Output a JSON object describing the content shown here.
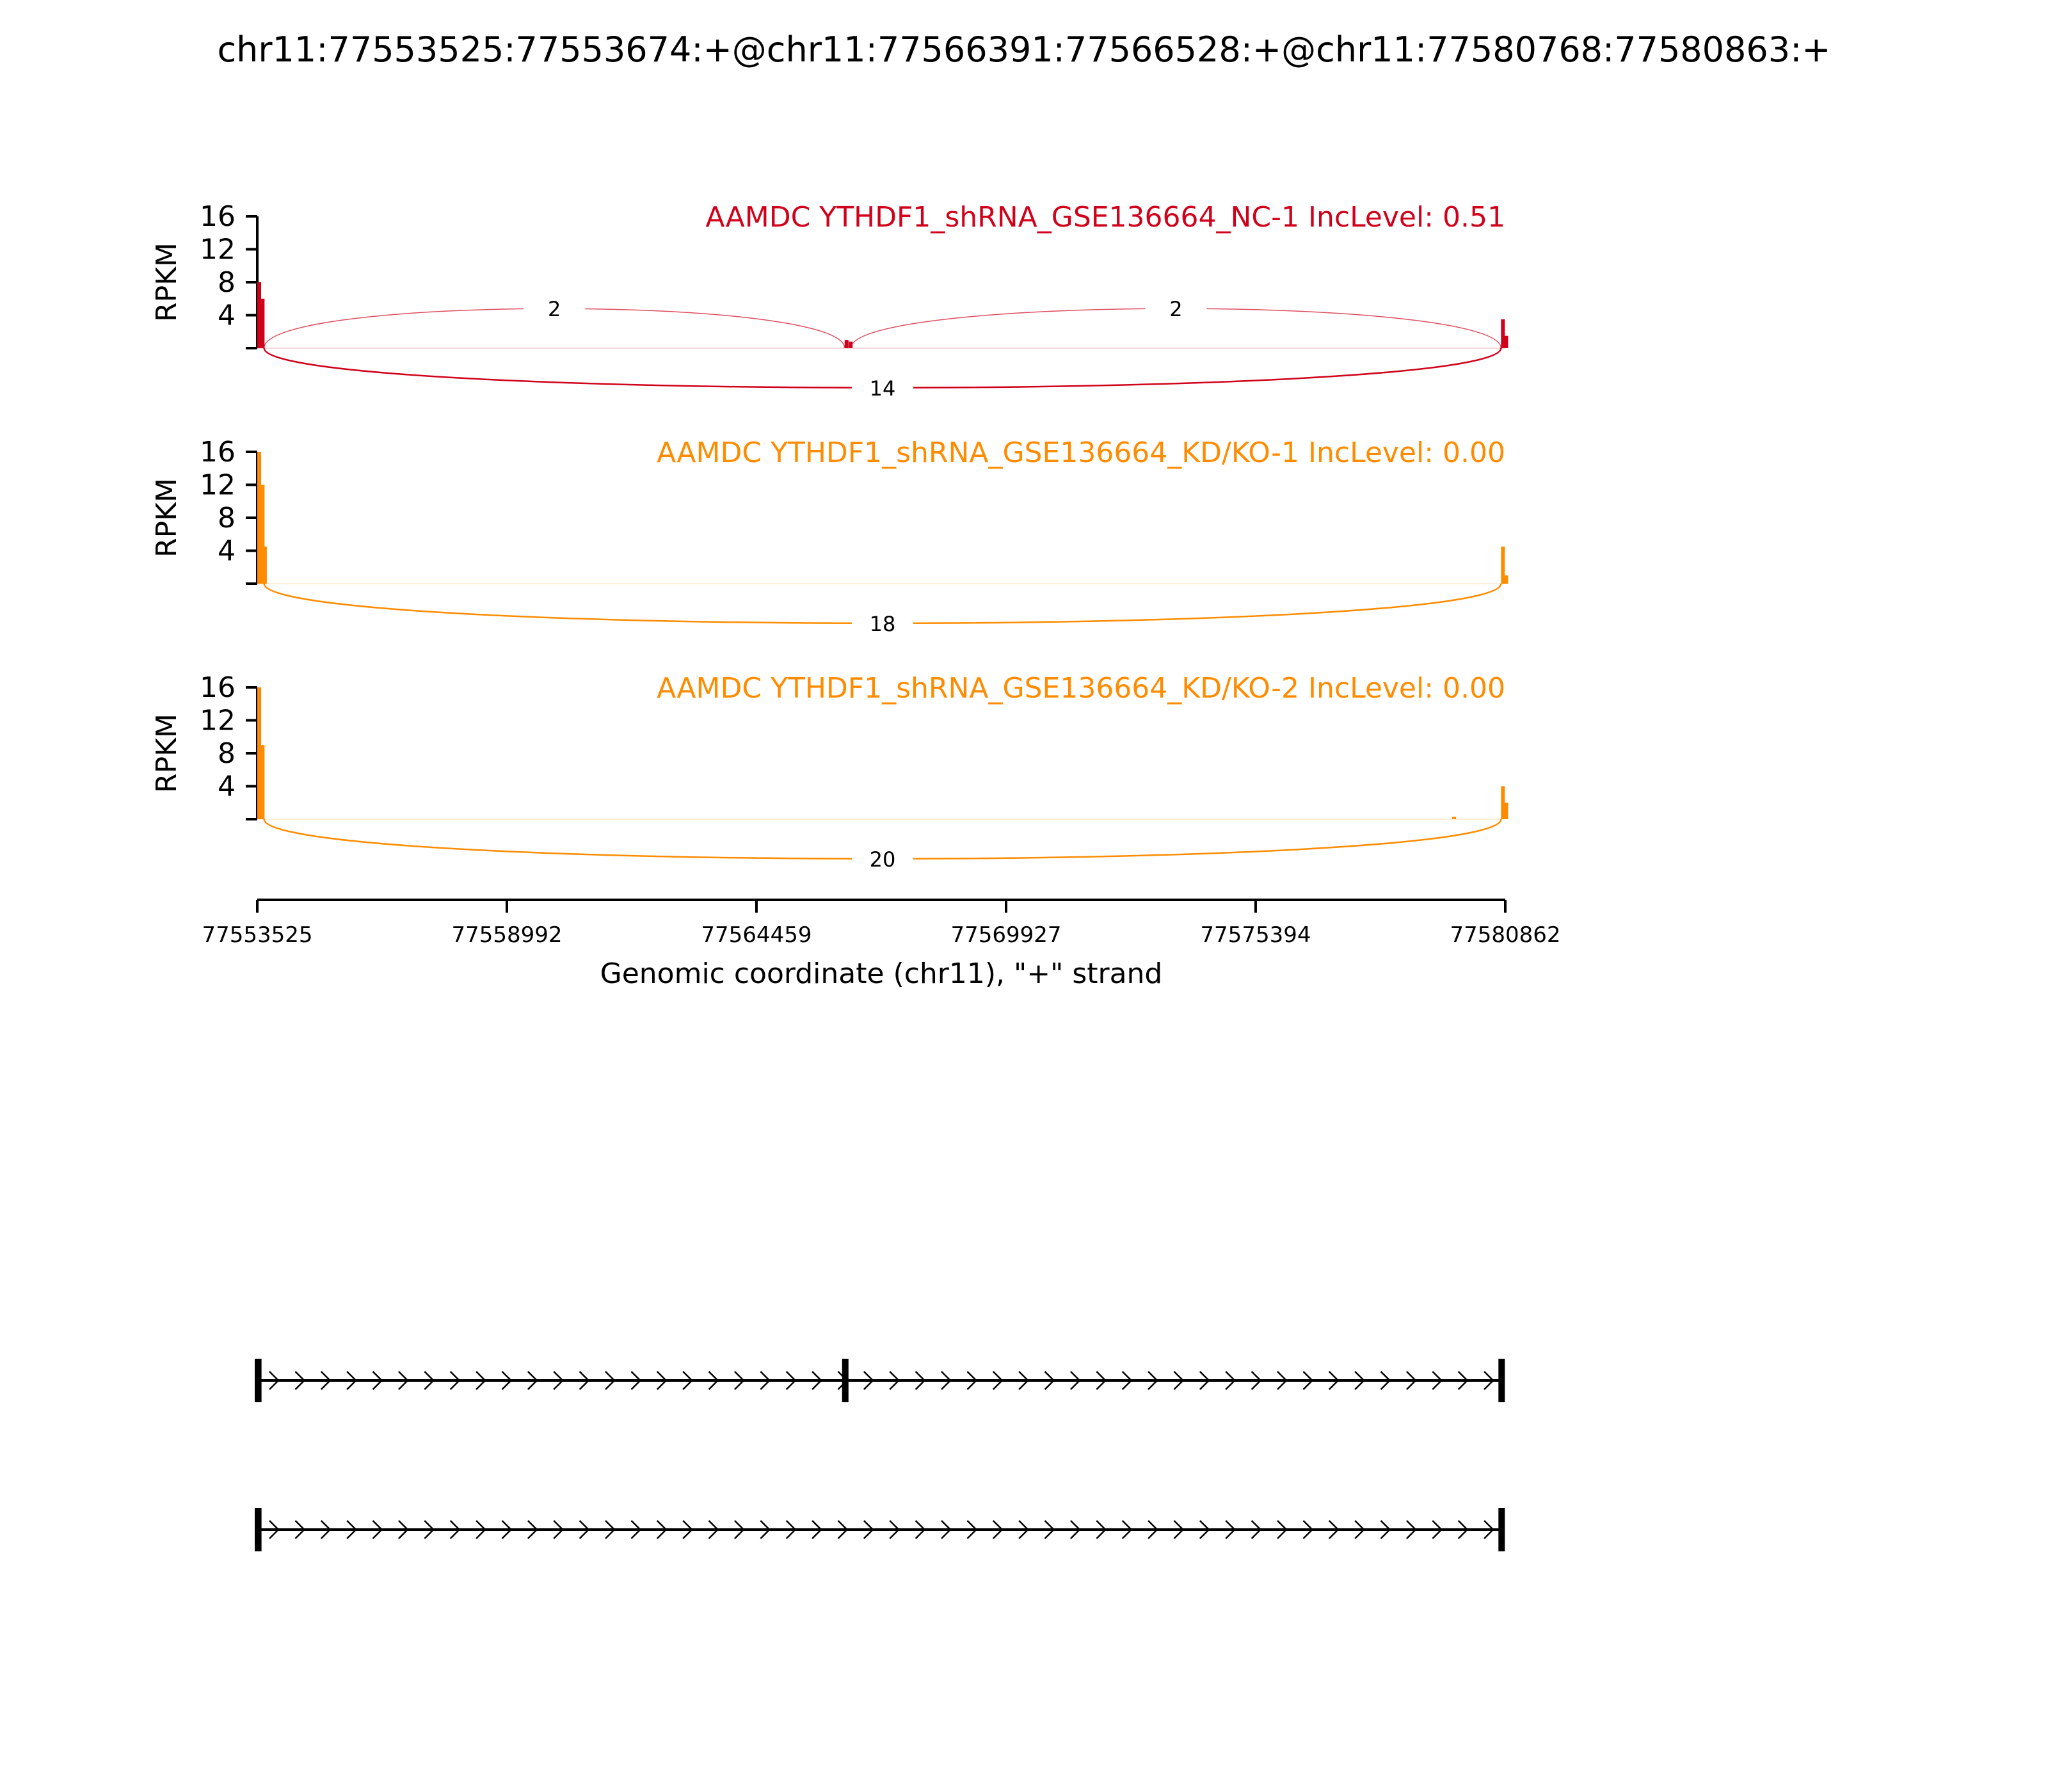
{
  "title": "chr11:77553525:77553674:+@chr11:77566391:77566528:+@chr11:77580768:77580863:+",
  "colors": {
    "nc": "#d0021b",
    "kd": "#ff8c00",
    "axis": "#000000"
  },
  "chart_data": {
    "type": "sashimi",
    "xlabel": "Genomic coordinate (chr11), \"+\" strand",
    "x_ticks": [
      77553525,
      77558992,
      77564459,
      77569927,
      77575394,
      77580862
    ],
    "xlim": [
      77553525,
      77580862
    ],
    "y_ticks": [
      4,
      8,
      12,
      16
    ],
    "ylim": [
      0,
      16
    ],
    "ylabel": "RPKM",
    "exons": [
      {
        "start": 77553525,
        "end": 77553674
      },
      {
        "start": 77566391,
        "end": 77566528
      },
      {
        "start": 77580768,
        "end": 77580863
      }
    ],
    "tracks": [
      {
        "label": "AAMDC YTHDF1_shRNA_GSE136664_NC-1 IncLevel: 0.51",
        "color": "nc",
        "coverage": [
          {
            "x": 77553525,
            "y": 8.0
          },
          {
            "x": 77553600,
            "y": 6.0
          },
          {
            "x": 77566391,
            "y": 1.0
          },
          {
            "x": 77566480,
            "y": 0.8
          },
          {
            "x": 77580768,
            "y": 3.5
          },
          {
            "x": 77580840,
            "y": 1.5
          }
        ],
        "junctions": [
          {
            "from": 77553674,
            "to": 77566391,
            "count": "2",
            "side": "above"
          },
          {
            "from": 77566528,
            "to": 77580768,
            "count": "2",
            "side": "above"
          },
          {
            "from": 77553674,
            "to": 77580768,
            "count": "14",
            "side": "below"
          }
        ]
      },
      {
        "label": "AAMDC YTHDF1_shRNA_GSE136664_KD/KO-1 IncLevel: 0.00",
        "color": "kd",
        "coverage": [
          {
            "x": 77553525,
            "y": 16.0
          },
          {
            "x": 77553600,
            "y": 12.0
          },
          {
            "x": 77553650,
            "y": 4.5
          },
          {
            "x": 77580768,
            "y": 4.5
          },
          {
            "x": 77580840,
            "y": 1.0
          }
        ],
        "junctions": [
          {
            "from": 77553674,
            "to": 77580768,
            "count": "18",
            "side": "below"
          }
        ]
      },
      {
        "label": "AAMDC YTHDF1_shRNA_GSE136664_KD/KO-2 IncLevel: 0.00",
        "color": "kd",
        "coverage": [
          {
            "x": 77553525,
            "y": 16.0
          },
          {
            "x": 77553600,
            "y": 9.0
          },
          {
            "x": 77579700,
            "y": 0.3
          },
          {
            "x": 77580768,
            "y": 4.0
          },
          {
            "x": 77580840,
            "y": 2.0
          }
        ],
        "junctions": [
          {
            "from": 77553674,
            "to": 77580768,
            "count": "20",
            "side": "below"
          }
        ]
      }
    ],
    "transcripts": [
      {
        "exons": [
          0,
          1,
          2
        ]
      },
      {
        "exons": [
          0,
          2
        ]
      }
    ]
  }
}
